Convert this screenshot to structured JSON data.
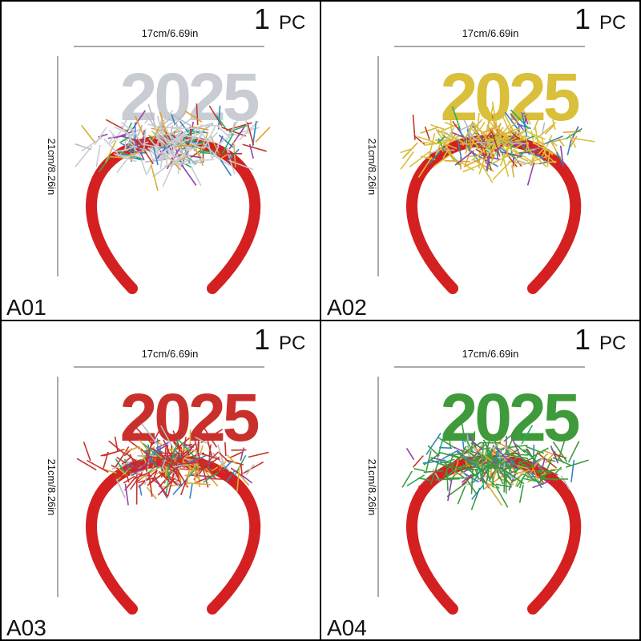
{
  "panels": [
    {
      "label": "A01",
      "count": "1",
      "unit": "PC",
      "width": "17cm/6.69in",
      "height": "21cm/8.26in",
      "numeral": "2025",
      "color": "#c9ccd3"
    },
    {
      "label": "A02",
      "count": "1",
      "unit": "PC",
      "width": "17cm/6.69in",
      "height": "21cm/8.26in",
      "numeral": "2025",
      "color": "#d9bf3a"
    },
    {
      "label": "A03",
      "count": "1",
      "unit": "PC",
      "width": "17cm/6.69in",
      "height": "21cm/8.26in",
      "numeral": "2025",
      "color": "#c9302c"
    },
    {
      "label": "A04",
      "count": "1",
      "unit": "PC",
      "width": "17cm/6.69in",
      "height": "21cm/8.26in",
      "numeral": "2025",
      "color": "#3e9a3a"
    }
  ]
}
